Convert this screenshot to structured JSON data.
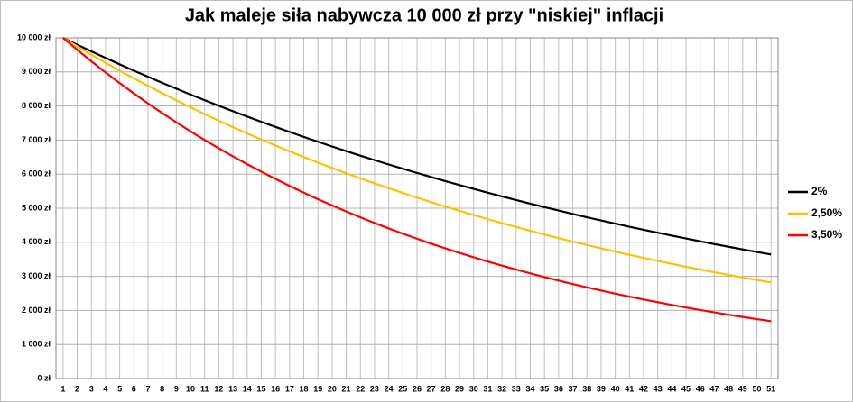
{
  "chart_data": {
    "type": "line",
    "title": "Jak maleje siła nabywcza 10 000 zł przy \"niskiej\" inflacji",
    "categories": [
      1,
      2,
      3,
      4,
      5,
      6,
      7,
      8,
      9,
      10,
      11,
      12,
      13,
      14,
      15,
      16,
      17,
      18,
      19,
      20,
      21,
      22,
      23,
      24,
      25,
      26,
      27,
      28,
      29,
      30,
      31,
      32,
      33,
      34,
      35,
      36,
      37,
      38,
      39,
      40,
      41,
      42,
      43,
      44,
      45,
      46,
      47,
      48,
      49,
      50,
      51
    ],
    "series": [
      {
        "name": "2%",
        "color": "#000000",
        "values": [
          10000,
          9800,
          9604,
          9412,
          9224,
          9039,
          8858,
          8681,
          8508,
          8337,
          8171,
          8007,
          7847,
          7690,
          7536,
          7386,
          7238,
          7093,
          6951,
          6812,
          6676,
          6543,
          6412,
          6283,
          6158,
          6035,
          5914,
          5796,
          5680,
          5566,
          5455,
          5346,
          5239,
          5134,
          5031,
          4931,
          4832,
          4735,
          4641,
          4548,
          4457,
          4368,
          4280,
          4195,
          4111,
          4029,
          3948,
          3869,
          3792,
          3716,
          3642
        ]
      },
      {
        "name": "2,50%",
        "color": "#ffc000",
        "values": [
          10000,
          9750,
          9506,
          9269,
          9037,
          8811,
          8591,
          8376,
          8167,
          7962,
          7763,
          7569,
          7380,
          7196,
          7016,
          6840,
          6669,
          6503,
          6340,
          6182,
          6027,
          5876,
          5730,
          5586,
          5447,
          5311,
          5178,
          5048,
          4922,
          4799,
          4679,
          4562,
          4448,
          4337,
          4229,
          4123,
          4020,
          3919,
          3821,
          3726,
          3633,
          3542,
          3453,
          3367,
          3283,
          3201,
          3121,
          3043,
          2967,
          2893,
          2820
        ]
      },
      {
        "name": "3,50%",
        "color": "#ff0000",
        "values": [
          10000,
          9650,
          9312,
          8986,
          8672,
          8368,
          8075,
          7793,
          7520,
          7257,
          7003,
          6758,
          6521,
          6293,
          6073,
          5860,
          5655,
          5457,
          5266,
          5082,
          4904,
          4732,
          4567,
          4407,
          4253,
          4104,
          3960,
          3822,
          3688,
          3559,
          3434,
          3314,
          3198,
          3086,
          2978,
          2874,
          2773,
          2676,
          2583,
          2492,
          2405,
          2321,
          2240,
          2161,
          2086,
          2013,
          1942,
          1874,
          1809,
          1745,
          1684
        ]
      }
    ],
    "ylim": [
      0,
      10000
    ],
    "yticks": [
      {
        "value": 0,
        "label": "0 zł"
      },
      {
        "value": 1000,
        "label": "1 000 zł"
      },
      {
        "value": 2000,
        "label": "2 000 zł"
      },
      {
        "value": 3000,
        "label": "3 000 zł"
      },
      {
        "value": 4000,
        "label": "4 000 zł"
      },
      {
        "value": 5000,
        "label": "5 000 zł"
      },
      {
        "value": 6000,
        "label": "6 000 zł"
      },
      {
        "value": 7000,
        "label": "7 000 zł"
      },
      {
        "value": 8000,
        "label": "8 000 zł"
      },
      {
        "value": 9000,
        "label": "9 000 zł"
      },
      {
        "value": 10000,
        "label": "10 000 zł"
      }
    ],
    "grid": true,
    "legend": "right"
  }
}
